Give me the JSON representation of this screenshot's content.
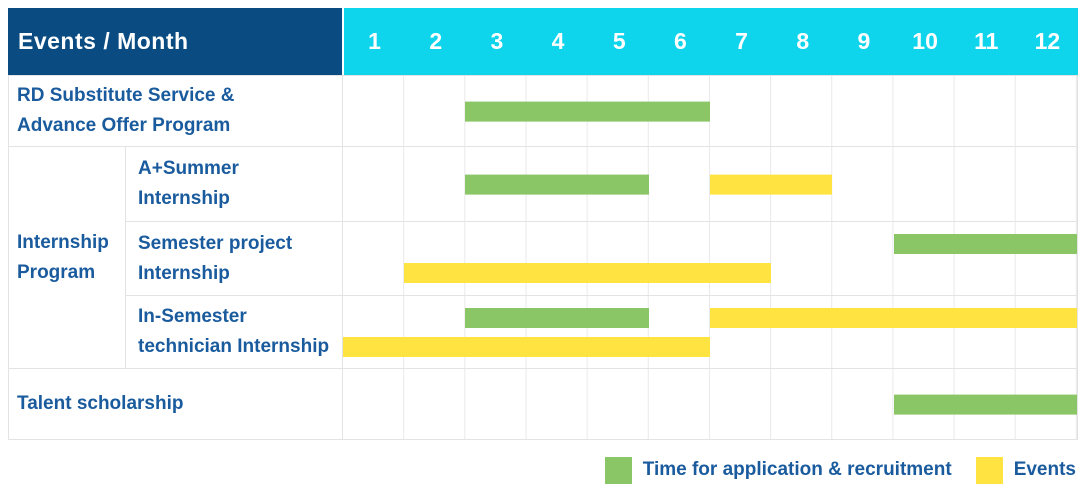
{
  "header": {
    "title": "Events / Month",
    "months": [
      "1",
      "2",
      "3",
      "4",
      "5",
      "6",
      "7",
      "8",
      "9",
      "10",
      "11",
      "12"
    ]
  },
  "colors": {
    "header_bg": "#0A4C82",
    "month_header_bg": "#0ED4EC",
    "application_bar": "#8AC566",
    "event_bar": "#FFE340",
    "label_text": "#1A5B9E",
    "grid_line": "#E3E3E3"
  },
  "sections": [
    {
      "type": "simple",
      "label_lines": [
        "RD Substitute Service &",
        "Advance Offer Program"
      ],
      "bars": [
        {
          "kind": "application",
          "start_month": 3,
          "end_month": 6,
          "lane": "single"
        }
      ]
    },
    {
      "type": "group",
      "label_lines": [
        "Internship",
        "Program"
      ],
      "children": [
        {
          "label_lines": [
            "A+Summer",
            "Internship"
          ],
          "bars": [
            {
              "kind": "application",
              "start_month": 3,
              "end_month": 5,
              "lane": "single"
            },
            {
              "kind": "event",
              "start_month": 7,
              "end_month": 8,
              "lane": "single"
            }
          ]
        },
        {
          "label_lines": [
            "Semester project",
            "Internship"
          ],
          "bars": [
            {
              "kind": "application",
              "start_month": 10,
              "end_month": 12,
              "lane": "top"
            },
            {
              "kind": "event",
              "start_month": 2,
              "end_month": 7,
              "lane": "bottom"
            }
          ]
        },
        {
          "label_lines": [
            "In-Semester",
            "technician Internship"
          ],
          "bars": [
            {
              "kind": "application",
              "start_month": 3,
              "end_month": 5,
              "lane": "top"
            },
            {
              "kind": "event",
              "start_month": 7,
              "end_month": 12,
              "lane": "top"
            },
            {
              "kind": "event",
              "start_month": 1,
              "end_month": 6,
              "lane": "bottom"
            }
          ]
        }
      ]
    },
    {
      "type": "simple",
      "label_lines": [
        "Talent scholarship"
      ],
      "bars": [
        {
          "kind": "application",
          "start_month": 10,
          "end_month": 12,
          "lane": "single"
        }
      ]
    }
  ],
  "legend": {
    "items": [
      {
        "kind": "application",
        "label": "Time for application & recruitment"
      },
      {
        "kind": "event",
        "label": "Events"
      }
    ]
  },
  "chart_data": {
    "type": "table",
    "subtype": "gantt",
    "title": "Events / Month",
    "x_categories": [
      1,
      2,
      3,
      4,
      5,
      6,
      7,
      8,
      9,
      10,
      11,
      12
    ],
    "x_range": [
      1,
      12
    ],
    "grid": true,
    "legend_position": "bottom-right",
    "rows": [
      {
        "group": null,
        "event": "RD Substitute Service & Advance Offer Program",
        "application_recruitment_months": [
          [
            3,
            6
          ]
        ],
        "event_months": []
      },
      {
        "group": "Internship Program",
        "event": "A+Summer Internship",
        "application_recruitment_months": [
          [
            3,
            5
          ]
        ],
        "event_months": [
          [
            7,
            8
          ]
        ]
      },
      {
        "group": "Internship Program",
        "event": "Semester project Internship",
        "application_recruitment_months": [
          [
            10,
            12
          ]
        ],
        "event_months": [
          [
            2,
            7
          ]
        ]
      },
      {
        "group": "Internship Program",
        "event": "In-Semester technician Internship",
        "application_recruitment_months": [
          [
            3,
            5
          ]
        ],
        "event_months": [
          [
            7,
            12
          ],
          [
            1,
            6
          ]
        ]
      },
      {
        "group": null,
        "event": "Talent scholarship",
        "application_recruitment_months": [
          [
            10,
            12
          ]
        ],
        "event_months": []
      }
    ],
    "series_legend": [
      {
        "name": "Time for application & recruitment",
        "color": "#8AC566"
      },
      {
        "name": "Events",
        "color": "#FFE340"
      }
    ]
  }
}
